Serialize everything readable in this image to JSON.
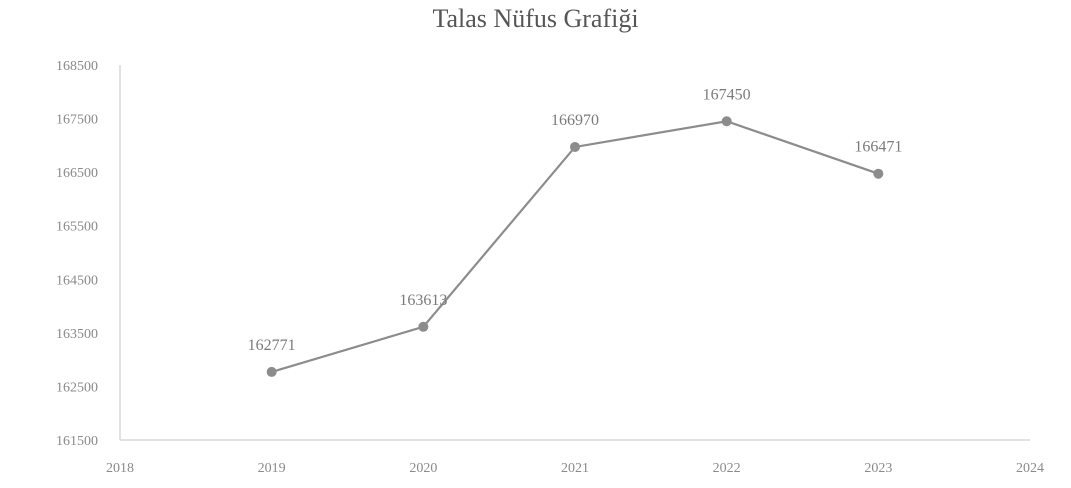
{
  "chart_data": {
    "type": "line",
    "title": "Talas Nüfus Grafiği",
    "xlabel": "",
    "ylabel": "",
    "x": [
      2019,
      2020,
      2021,
      2022,
      2023
    ],
    "xlim": [
      2018,
      2024
    ],
    "x_tick_labels": [
      "2018",
      "2019",
      "2020",
      "2021",
      "2022",
      "2023",
      "2024"
    ],
    "series": [
      {
        "values": [
          162771,
          163613,
          166970,
          167450,
          166471
        ],
        "data_labels": [
          "162771",
          "163613",
          "166970",
          "167450",
          "166471"
        ]
      }
    ],
    "ylim": [
      161500,
      168500
    ],
    "y_ticks": [
      161500,
      162500,
      163500,
      164500,
      165500,
      166500,
      167500,
      168500
    ],
    "y_tick_labels": [
      "161500",
      "162500",
      "163500",
      "164500",
      "165500",
      "166500",
      "167500",
      "168500"
    ],
    "grid": false,
    "legend": "none",
    "colors": {
      "line": "#8c8c8c",
      "marker": "#8c8c8c",
      "axis": "#d9d9d9"
    }
  }
}
